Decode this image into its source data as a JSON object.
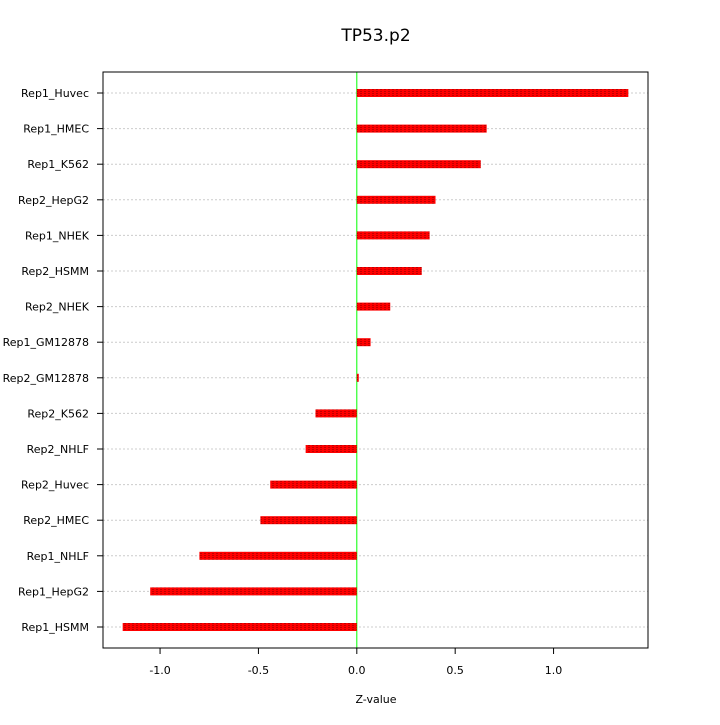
{
  "chart_data": {
    "type": "bar",
    "orientation": "horizontal",
    "title": "TP53.p2",
    "xlabel": "Z-value",
    "ylabel": "",
    "categories": [
      "Rep1_Huvec",
      "Rep1_HMEC",
      "Rep1_K562",
      "Rep2_HepG2",
      "Rep1_NHEK",
      "Rep2_HSMM",
      "Rep2_NHEK",
      "Rep1_GM12878",
      "Rep2_GM12878",
      "Rep2_K562",
      "Rep2_NHLF",
      "Rep2_Huvec",
      "Rep2_HMEC",
      "Rep1_NHLF",
      "Rep1_HepG2",
      "Rep1_HSMM"
    ],
    "values": [
      1.38,
      0.66,
      0.63,
      0.4,
      0.37,
      0.33,
      0.17,
      0.07,
      0.01,
      -0.21,
      -0.26,
      -0.44,
      -0.49,
      -0.8,
      -1.05,
      -1.19
    ],
    "xlim": [
      -1.29,
      1.48
    ],
    "xticks": [
      -1.0,
      -0.5,
      0.0,
      0.5,
      1.0
    ],
    "xtick_labels": [
      "-1.0",
      "-0.5",
      "0.0",
      "0.5",
      "1.0"
    ],
    "grid": true,
    "reference_line": 0,
    "colors": {
      "bar": "#ff0000",
      "bar_stripe": "#c00000",
      "zero_line": "#00ff00",
      "grid": "#cccccc",
      "frame": "#000000"
    }
  }
}
